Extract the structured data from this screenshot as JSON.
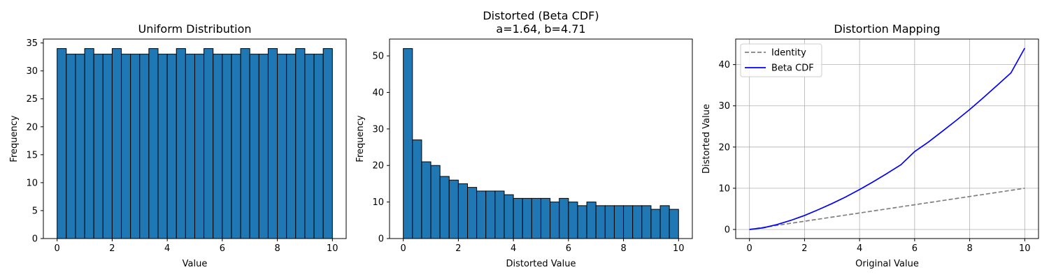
{
  "chart_data": [
    {
      "type": "bar",
      "title": "Uniform Distribution",
      "xlabel": "Value",
      "ylabel": "Frequency",
      "xlim": [
        -0.5,
        10.5
      ],
      "ylim": [
        0,
        35.7
      ],
      "xticks": [
        0,
        2,
        4,
        6,
        8,
        10
      ],
      "yticks": [
        0,
        5,
        10,
        15,
        20,
        25,
        30,
        35
      ],
      "bin_start": 0,
      "bin_width": 0.3333,
      "values": [
        34,
        33,
        33,
        34,
        33,
        33,
        34,
        33,
        33,
        33,
        34,
        33,
        33,
        34,
        33,
        33,
        34,
        33,
        33,
        33,
        34,
        33,
        33,
        34,
        33,
        33,
        34,
        33,
        33,
        34
      ],
      "bar_color": "#1f77b4",
      "edge_color": "#000000",
      "grid": false
    },
    {
      "type": "bar",
      "title": "Distorted (Beta CDF)\na=1.64, b=4.71",
      "xlabel": "Distorted Value",
      "ylabel": "Frequency",
      "xlim": [
        -0.5,
        10.5
      ],
      "ylim": [
        0,
        54.6
      ],
      "xticks": [
        0,
        2,
        4,
        6,
        8,
        10
      ],
      "yticks": [
        0,
        10,
        20,
        30,
        40,
        50
      ],
      "bin_start": 0,
      "bin_width": 0.3333,
      "values": [
        52,
        27,
        21,
        20,
        17,
        16,
        15,
        14,
        13,
        13,
        13,
        12,
        11,
        11,
        11,
        11,
        10,
        11,
        10,
        9,
        10,
        9,
        9,
        9,
        9,
        9,
        9,
        8,
        9,
        8
      ],
      "bar_color": "#1f77b4",
      "edge_color": "#000000",
      "grid": false
    },
    {
      "type": "line",
      "title": "Distortion Mapping",
      "xlabel": "Original Value",
      "ylabel": "Distorted Value",
      "xlim": [
        -0.5,
        10.5
      ],
      "ylim": [
        -2.2,
        46.2
      ],
      "xticks": [
        0,
        2,
        4,
        6,
        8,
        10
      ],
      "yticks": [
        0,
        10,
        20,
        30,
        40
      ],
      "grid": true,
      "legend": "top-left",
      "series": [
        {
          "name": "Identity",
          "color": "#808080",
          "dashed": true,
          "x": [
            0,
            10
          ],
          "y": [
            0,
            10
          ]
        },
        {
          "name": "Beta CDF",
          "color": "#0000ff",
          "dashed": false,
          "x": [
            0,
            0.5,
            1,
            1.5,
            2,
            2.5,
            3,
            3.5,
            4,
            4.5,
            5,
            5.5,
            6,
            6.5,
            7,
            7.5,
            8,
            8.5,
            9,
            9.5,
            10
          ],
          "y": [
            0,
            0.4,
            1.2,
            2.2,
            3.4,
            4.8,
            6.3,
            7.9,
            9.7,
            11.6,
            13.6,
            15.7,
            18.9,
            21.2,
            23.8,
            26.4,
            29.1,
            32.0,
            35.0,
            38.0,
            44.0
          ]
        }
      ]
    }
  ]
}
